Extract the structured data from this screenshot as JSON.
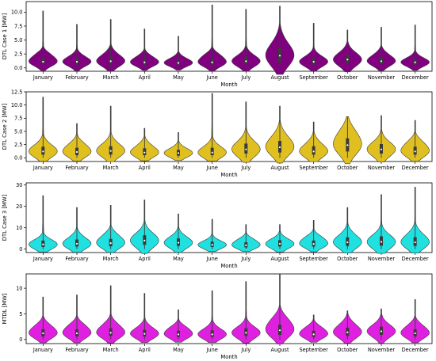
{
  "chart_data": [
    {
      "type": "violin",
      "ylabel": "DTL Case 1 [MW]",
      "xlabel": "Month",
      "color": "#800080",
      "ylim": [
        -0.6,
        11.9
      ],
      "yticks": [
        0.0,
        2.5,
        5.0,
        7.5,
        10.0
      ],
      "ytick_labels": [
        "0.0",
        "2.5",
        "5.0",
        "7.5",
        "10.0"
      ],
      "categories": [
        "January",
        "February",
        "March",
        "April",
        "May",
        "June",
        "July",
        "August",
        "September",
        "October",
        "November",
        "December"
      ],
      "violins": [
        {
          "min": 0.0,
          "q1": 0.7,
          "median": 1.1,
          "q3": 1.8,
          "max": 10.2
        },
        {
          "min": 0.0,
          "q1": 0.6,
          "median": 1.1,
          "q3": 1.7,
          "max": 7.8
        },
        {
          "min": 0.0,
          "q1": 0.7,
          "median": 1.2,
          "q3": 2.0,
          "max": 8.7
        },
        {
          "min": 0.0,
          "q1": 0.6,
          "median": 1.0,
          "q3": 1.6,
          "max": 7.0
        },
        {
          "min": 0.0,
          "q1": 0.5,
          "median": 0.9,
          "q3": 1.4,
          "max": 5.7
        },
        {
          "min": 0.0,
          "q1": 0.6,
          "median": 1.0,
          "q3": 1.7,
          "max": 11.3
        },
        {
          "min": 0.0,
          "q1": 0.7,
          "median": 1.2,
          "q3": 2.0,
          "max": 10.5
        },
        {
          "min": 0.0,
          "q1": 1.0,
          "median": 2.2,
          "q3": 3.6,
          "max": 11.1
        },
        {
          "min": 0.0,
          "q1": 0.6,
          "median": 1.1,
          "q3": 1.8,
          "max": 8.0
        },
        {
          "min": 0.0,
          "q1": 0.8,
          "median": 1.5,
          "q3": 2.4,
          "max": 6.8
        },
        {
          "min": 0.0,
          "q1": 0.7,
          "median": 1.2,
          "q3": 1.9,
          "max": 7.3
        },
        {
          "min": 0.0,
          "q1": 0.6,
          "median": 1.0,
          "q3": 1.6,
          "max": 7.7
        }
      ]
    },
    {
      "type": "violin",
      "ylabel": "DTL Case 2 [MW]",
      "xlabel": "Month",
      "color": "#e0c020",
      "ylim": [
        -0.7,
        12.5
      ],
      "yticks": [
        0.0,
        2.5,
        5.0,
        7.5,
        10.0,
        12.5
      ],
      "ytick_labels": [
        "0.0",
        "2.5",
        "5.0",
        "7.5",
        "10.0",
        "12.5"
      ],
      "categories": [
        "January",
        "February",
        "March",
        "April",
        "May",
        "June",
        "July",
        "August",
        "September",
        "October",
        "November",
        "December"
      ],
      "violins": [
        {
          "min": 0.0,
          "q1": 0.6,
          "median": 1.2,
          "q3": 2.1,
          "max": 11.5
        },
        {
          "min": 0.0,
          "q1": 0.5,
          "median": 1.1,
          "q3": 1.9,
          "max": 6.5
        },
        {
          "min": 0.0,
          "q1": 0.6,
          "median": 1.3,
          "q3": 2.2,
          "max": 9.8
        },
        {
          "min": 0.0,
          "q1": 0.5,
          "median": 1.0,
          "q3": 1.8,
          "max": 5.6
        },
        {
          "min": 0.0,
          "q1": 0.4,
          "median": 0.9,
          "q3": 1.5,
          "max": 4.8
        },
        {
          "min": 0.0,
          "q1": 0.5,
          "median": 1.0,
          "q3": 1.9,
          "max": 12.2
        },
        {
          "min": 0.0,
          "q1": 0.8,
          "median": 1.6,
          "q3": 2.7,
          "max": 10.6
        },
        {
          "min": 0.0,
          "q1": 1.0,
          "median": 2.0,
          "q3": 3.2,
          "max": 9.8
        },
        {
          "min": 0.0,
          "q1": 0.6,
          "median": 1.2,
          "q3": 2.2,
          "max": 6.8
        },
        {
          "min": 0.0,
          "q1": 1.2,
          "median": 2.4,
          "q3": 3.7,
          "max": 7.8
        },
        {
          "min": 0.0,
          "q1": 0.8,
          "median": 1.6,
          "q3": 2.6,
          "max": 8.0
        },
        {
          "min": 0.0,
          "q1": 0.6,
          "median": 1.2,
          "q3": 2.1,
          "max": 7.1
        }
      ]
    },
    {
      "type": "violin",
      "ylabel": "DTL Case 3 [MW]",
      "xlabel": "Month",
      "color": "#20e0e0",
      "ylim": [
        -1.6,
        31
      ],
      "yticks": [
        0,
        10,
        20,
        30
      ],
      "ytick_labels": [
        "0",
        "10",
        "20",
        "30"
      ],
      "categories": [
        "January",
        "February",
        "March",
        "April",
        "May",
        "June",
        "July",
        "August",
        "September",
        "October",
        "November",
        "December"
      ],
      "violins": [
        {
          "min": 0.0,
          "q1": 1.0,
          "median": 2.2,
          "q3": 4.0,
          "max": 25.0
        },
        {
          "min": 0.0,
          "q1": 1.2,
          "median": 2.5,
          "q3": 4.5,
          "max": 19.5
        },
        {
          "min": 0.0,
          "q1": 1.3,
          "median": 2.8,
          "q3": 4.8,
          "max": 20.5
        },
        {
          "min": 0.0,
          "q1": 2.0,
          "median": 4.0,
          "q3": 6.5,
          "max": 23.0
        },
        {
          "min": 0.0,
          "q1": 1.5,
          "median": 3.0,
          "q3": 5.0,
          "max": 16.5
        },
        {
          "min": 0.0,
          "q1": 1.0,
          "median": 2.0,
          "q3": 3.5,
          "max": 14.0
        },
        {
          "min": 0.0,
          "q1": 0.8,
          "median": 1.8,
          "q3": 3.2,
          "max": 11.5
        },
        {
          "min": 0.0,
          "q1": 1.2,
          "median": 2.5,
          "q3": 4.2,
          "max": 11.5
        },
        {
          "min": 0.0,
          "q1": 1.2,
          "median": 2.4,
          "q3": 4.0,
          "max": 13.5
        },
        {
          "min": 0.0,
          "q1": 1.5,
          "median": 3.2,
          "q3": 5.5,
          "max": 19.5
        },
        {
          "min": 0.0,
          "q1": 1.6,
          "median": 3.4,
          "q3": 6.0,
          "max": 25.5
        },
        {
          "min": 0.0,
          "q1": 1.5,
          "median": 3.2,
          "q3": 5.6,
          "max": 29.0
        }
      ]
    },
    {
      "type": "violin",
      "ylabel": "MTDL [MW]",
      "xlabel": "Month",
      "color": "#e020e0",
      "ylim": [
        -0.8,
        12.8
      ],
      "yticks": [
        0,
        5,
        10
      ],
      "ytick_labels": [
        "0",
        "5",
        "10"
      ],
      "categories": [
        "January",
        "February",
        "March",
        "April",
        "May",
        "June",
        "July",
        "August",
        "September",
        "October",
        "November",
        "December"
      ],
      "violins": [
        {
          "min": 0.0,
          "q1": 0.6,
          "median": 1.2,
          "q3": 2.0,
          "max": 8.3
        },
        {
          "min": 0.0,
          "q1": 0.6,
          "median": 1.2,
          "q3": 2.0,
          "max": 8.7
        },
        {
          "min": 0.0,
          "q1": 0.7,
          "median": 1.3,
          "q3": 2.2,
          "max": 10.5
        },
        {
          "min": 0.0,
          "q1": 0.6,
          "median": 1.1,
          "q3": 1.9,
          "max": 9.0
        },
        {
          "min": 0.0,
          "q1": 0.5,
          "median": 1.0,
          "q3": 1.7,
          "max": 5.8
        },
        {
          "min": 0.0,
          "q1": 0.5,
          "median": 1.0,
          "q3": 1.8,
          "max": 9.5
        },
        {
          "min": 0.0,
          "q1": 0.7,
          "median": 1.3,
          "q3": 2.2,
          "max": 11.3
        },
        {
          "min": 0.0,
          "q1": 0.9,
          "median": 1.8,
          "q3": 2.9,
          "max": 12.7
        },
        {
          "min": 0.0,
          "q1": 0.5,
          "median": 1.0,
          "q3": 1.7,
          "max": 4.8
        },
        {
          "min": 0.0,
          "q1": 0.7,
          "median": 1.4,
          "q3": 2.3,
          "max": 5.6
        },
        {
          "min": 0.0,
          "q1": 0.9,
          "median": 1.6,
          "q3": 2.5,
          "max": 6.0
        },
        {
          "min": 0.0,
          "q1": 0.6,
          "median": 1.2,
          "q3": 2.0,
          "max": 7.8
        }
      ]
    }
  ]
}
